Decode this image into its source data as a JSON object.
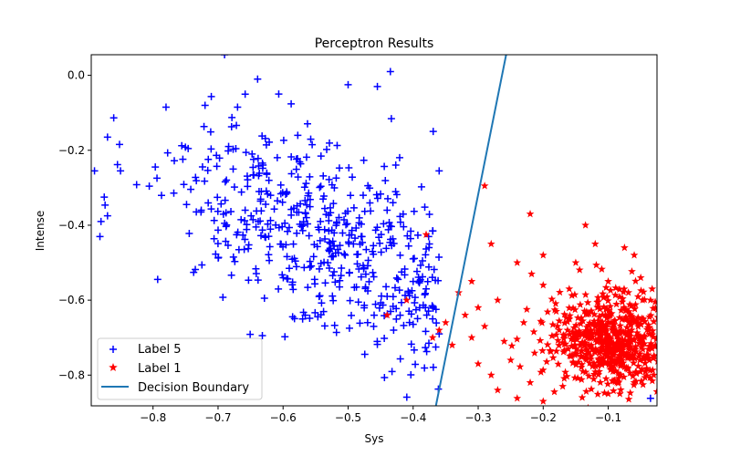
{
  "chart_data": {
    "type": "scatter",
    "title": "Perceptron Results",
    "xlabel": "Sys",
    "ylabel": "Intense",
    "xlim": [
      -0.895,
      -0.025
    ],
    "ylim": [
      -0.882,
      0.055
    ],
    "xticks": [
      -0.8,
      -0.7,
      -0.6,
      -0.5,
      -0.4,
      -0.3,
      -0.2,
      -0.1
    ],
    "yticks": [
      0.0,
      -0.2,
      -0.4,
      -0.6,
      -0.8
    ],
    "xtick_labels": [
      "−0.8",
      "−0.7",
      "−0.6",
      "−0.5",
      "−0.4",
      "−0.3",
      "−0.2",
      "−0.1"
    ],
    "ytick_labels": [
      "0.0",
      "−0.2",
      "−0.4",
      "−0.6",
      "−0.8"
    ],
    "grid": false,
    "legend_position": "lower left",
    "series": [
      {
        "name": "Label 5",
        "marker": "plus",
        "color": "#0000ff",
        "cluster": {
          "center": [
            -0.55,
            -0.42
          ],
          "spread": [
            0.12,
            0.13
          ],
          "count": 520
        },
        "points": [
          [
            -0.69,
            0.055
          ],
          [
            -0.435,
            0.01
          ],
          [
            -0.5,
            -0.025
          ],
          [
            -0.455,
            -0.03
          ],
          [
            -0.78,
            -0.085
          ],
          [
            -0.72,
            -0.08
          ],
          [
            -0.67,
            -0.085
          ],
          [
            -0.87,
            -0.165
          ],
          [
            -0.89,
            -0.255
          ],
          [
            -0.85,
            -0.255
          ],
          [
            -0.88,
            -0.39
          ],
          [
            -0.87,
            -0.375
          ],
          [
            -0.875,
            -0.325
          ],
          [
            -0.36,
            -0.255
          ],
          [
            -0.37,
            -0.415
          ],
          [
            -0.375,
            -0.45
          ],
          [
            -0.38,
            -0.57
          ],
          [
            -0.37,
            -0.65
          ],
          [
            -0.36,
            -0.69
          ],
          [
            -0.035,
            -0.862
          ],
          [
            -0.44,
            -0.36
          ],
          [
            -0.42,
            -0.48
          ],
          [
            -0.4,
            -0.49
          ],
          [
            -0.4,
            -0.55
          ],
          [
            -0.39,
            -0.62
          ],
          [
            -0.42,
            -0.64
          ],
          [
            -0.44,
            -0.59
          ],
          [
            -0.46,
            -0.64
          ],
          [
            -0.47,
            -0.66
          ],
          [
            -0.43,
            -0.68
          ]
        ]
      },
      {
        "name": "Label 1",
        "marker": "star",
        "color": "#ff0000",
        "cluster": {
          "center": [
            -0.095,
            -0.71
          ],
          "spread": [
            0.045,
            0.065
          ],
          "count": 620
        },
        "points": [
          [
            -0.29,
            -0.295
          ],
          [
            -0.22,
            -0.37
          ],
          [
            -0.38,
            -0.425
          ],
          [
            -0.41,
            -0.6
          ],
          [
            -0.135,
            -0.4
          ],
          [
            -0.2,
            -0.48
          ],
          [
            -0.28,
            -0.45
          ],
          [
            -0.24,
            -0.5
          ],
          [
            -0.31,
            -0.55
          ],
          [
            -0.3,
            -0.62
          ],
          [
            -0.32,
            -0.64
          ],
          [
            -0.35,
            -0.66
          ],
          [
            -0.37,
            -0.7
          ],
          [
            -0.36,
            -0.68
          ],
          [
            -0.34,
            -0.72
          ],
          [
            -0.3,
            -0.77
          ],
          [
            -0.28,
            -0.8
          ],
          [
            -0.27,
            -0.84
          ],
          [
            -0.24,
            -0.862
          ],
          [
            -0.2,
            -0.87
          ],
          [
            -0.22,
            -0.82
          ],
          [
            -0.25,
            -0.76
          ],
          [
            -0.26,
            -0.71
          ],
          [
            -0.23,
            -0.66
          ],
          [
            -0.27,
            -0.6
          ],
          [
            -0.18,
            -0.63
          ],
          [
            -0.2,
            -0.56
          ],
          [
            -0.15,
            -0.5
          ],
          [
            -0.12,
            -0.45
          ],
          [
            -0.075,
            -0.46
          ],
          [
            -0.05,
            -0.54
          ],
          [
            -0.1,
            -0.55
          ],
          [
            -0.035,
            -0.6
          ],
          [
            -0.03,
            -0.8
          ],
          [
            -0.03,
            -0.75
          ],
          [
            -0.06,
            -0.82
          ],
          [
            -0.1,
            -0.85
          ],
          [
            -0.14,
            -0.86
          ],
          [
            -0.17,
            -0.83
          ],
          [
            -0.06,
            -0.48
          ],
          [
            -0.16,
            -0.57
          ],
          [
            -0.44,
            -0.64
          ],
          [
            -0.33,
            -0.58
          ],
          [
            -0.29,
            -0.67
          ],
          [
            -0.31,
            -0.7
          ]
        ]
      }
    ],
    "decision_boundary": {
      "name": "Decision Boundary",
      "color": "#1f77b4",
      "points": [
        [
          -0.365,
          -0.882
        ],
        [
          -0.257,
          0.055
        ]
      ]
    }
  }
}
